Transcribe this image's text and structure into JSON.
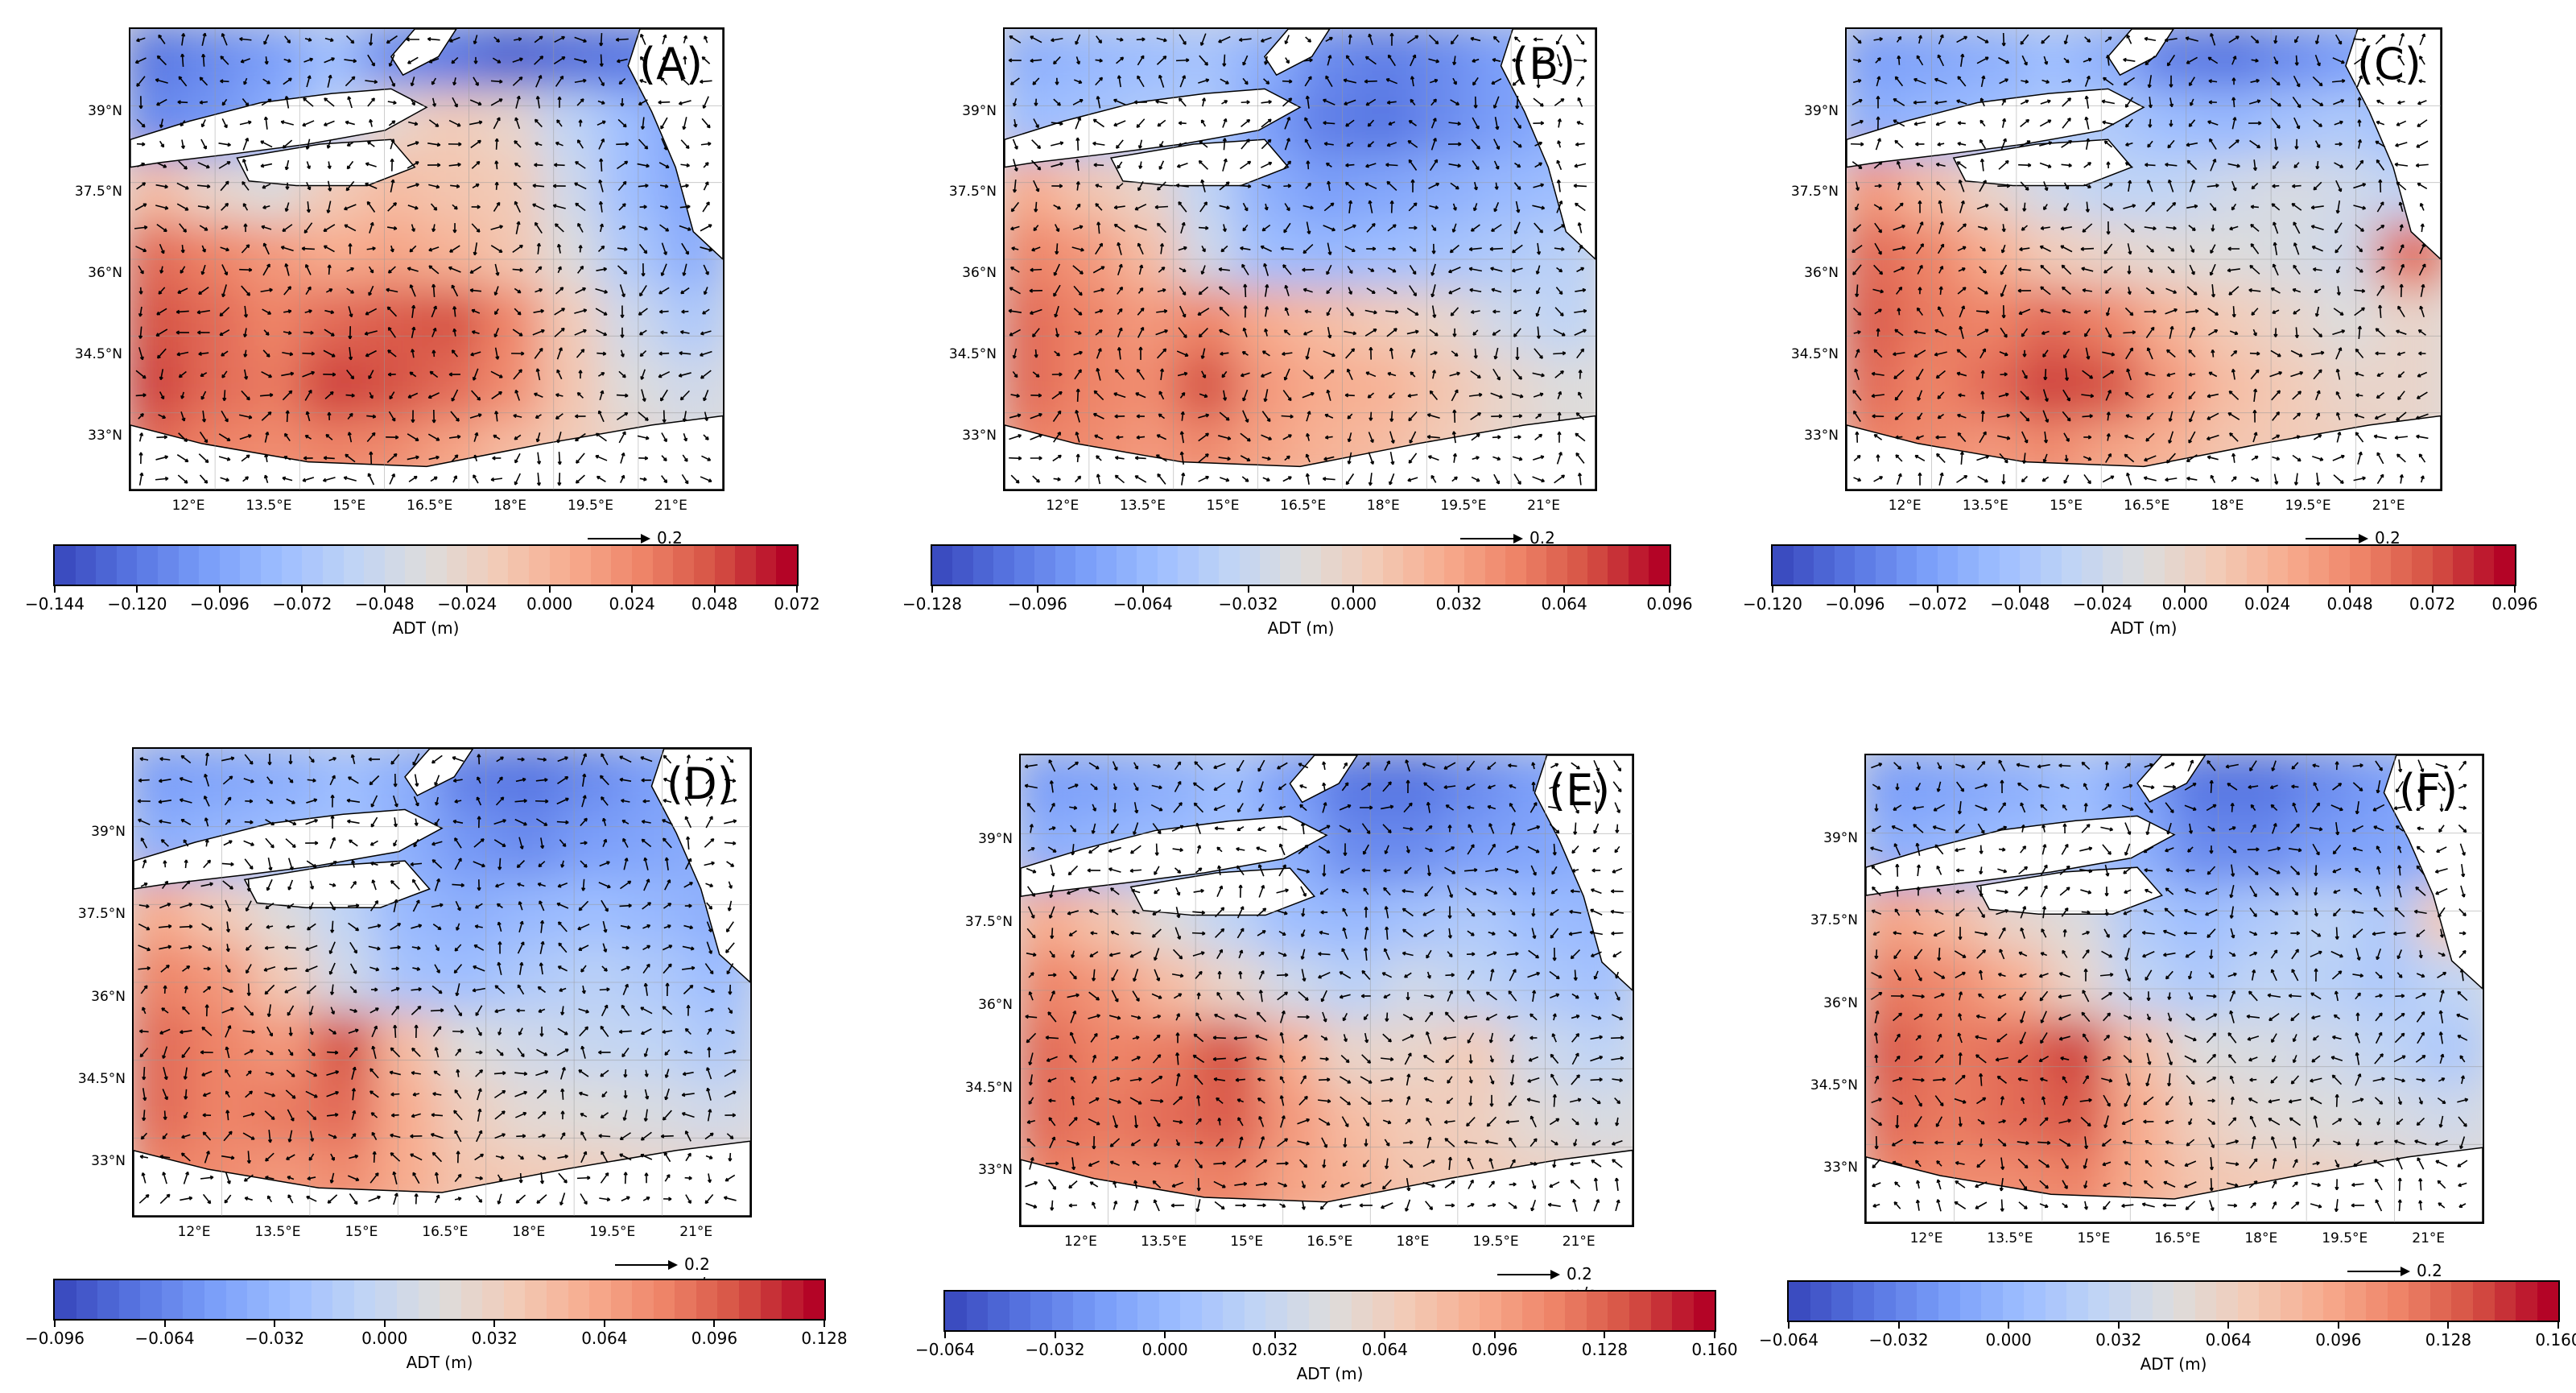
{
  "colors": {
    "scale": [
      "#3b4cc0",
      "#5977e3",
      "#7b9ff9",
      "#9ebeff",
      "#c0d4f5",
      "#dddcdc",
      "#f2cbb7",
      "#f7ac8e",
      "#ee8468",
      "#d65244",
      "#b40426"
    ],
    "land": "#ffffff"
  },
  "reference_vector": "0.2 m/s",
  "lat_labels": [
    "39°N",
    "37.5°N",
    "36°N",
    "34.5°N",
    "33°N"
  ],
  "lon_labels": [
    "12°E",
    "13.5°E",
    "15°E",
    "16.5°E",
    "18°E",
    "19.5°E",
    "21°E"
  ],
  "colorbar_label": "ADT (m)",
  "panels": [
    {
      "label": "(A)",
      "ticks": [
        "−0.144",
        "−0.120",
        "−0.096",
        "−0.072",
        "−0.048",
        "−0.024",
        "0.000",
        "0.024",
        "0.048",
        "0.072"
      ],
      "pattern": [
        [
          0.1,
          0.15,
          0.2,
          0.3,
          0.15,
          0.1,
          0.05,
          0.08,
          0.1,
          0.15
        ],
        [
          0.15,
          0.18,
          0.25,
          0.4,
          0.55,
          0.6,
          0.55,
          0.4,
          0.3,
          0.2
        ],
        [
          0.65,
          0.55,
          0.5,
          0.6,
          0.65,
          0.62,
          0.6,
          0.45,
          0.3,
          0.22
        ],
        [
          0.85,
          0.8,
          0.75,
          0.7,
          0.72,
          0.68,
          0.62,
          0.5,
          0.35,
          0.25
        ],
        [
          0.9,
          0.85,
          0.8,
          0.85,
          0.88,
          0.9,
          0.8,
          0.6,
          0.45,
          0.35
        ],
        [
          0.92,
          0.85,
          0.82,
          0.92,
          0.9,
          0.85,
          0.78,
          0.62,
          0.5,
          0.45
        ],
        [
          0.85,
          0.8,
          0.78,
          0.8,
          0.78,
          0.72,
          0.65,
          0.6,
          0.55,
          0.5
        ]
      ]
    },
    {
      "label": "(B)",
      "ticks": [
        "−0.128",
        "−0.096",
        "−0.064",
        "−0.032",
        "0.000",
        "0.032",
        "0.064",
        "0.096"
      ],
      "pattern": [
        [
          0.25,
          0.28,
          0.3,
          0.32,
          0.25,
          0.15,
          0.12,
          0.15,
          0.2,
          0.25
        ],
        [
          0.3,
          0.32,
          0.35,
          0.35,
          0.2,
          0.12,
          0.1,
          0.15,
          0.2,
          0.25
        ],
        [
          0.7,
          0.62,
          0.55,
          0.4,
          0.25,
          0.2,
          0.22,
          0.25,
          0.28,
          0.3
        ],
        [
          0.8,
          0.75,
          0.65,
          0.45,
          0.3,
          0.28,
          0.3,
          0.32,
          0.35,
          0.38
        ],
        [
          0.85,
          0.8,
          0.75,
          0.8,
          0.7,
          0.65,
          0.6,
          0.55,
          0.45,
          0.4
        ],
        [
          0.85,
          0.8,
          0.78,
          0.9,
          0.75,
          0.7,
          0.68,
          0.62,
          0.55,
          0.5
        ],
        [
          0.8,
          0.78,
          0.75,
          0.78,
          0.72,
          0.68,
          0.65,
          0.6,
          0.55,
          0.52
        ]
      ]
    },
    {
      "label": "(C)",
      "ticks": [
        "−0.120",
        "−0.096",
        "−0.072",
        "−0.048",
        "−0.024",
        "0.000",
        "0.024",
        "0.048",
        "0.072",
        "0.096"
      ],
      "pattern": [
        [
          0.2,
          0.22,
          0.25,
          0.3,
          0.25,
          0.12,
          0.1,
          0.15,
          0.2,
          0.25
        ],
        [
          0.25,
          0.28,
          0.3,
          0.35,
          0.35,
          0.3,
          0.28,
          0.32,
          0.35,
          0.3
        ],
        [
          0.75,
          0.65,
          0.55,
          0.45,
          0.4,
          0.4,
          0.45,
          0.48,
          0.45,
          0.4
        ],
        [
          0.85,
          0.8,
          0.7,
          0.6,
          0.55,
          0.52,
          0.5,
          0.48,
          0.45,
          0.85
        ],
        [
          0.88,
          0.82,
          0.8,
          0.85,
          0.8,
          0.68,
          0.6,
          0.55,
          0.5,
          0.55
        ],
        [
          0.85,
          0.8,
          0.85,
          0.92,
          0.9,
          0.75,
          0.65,
          0.6,
          0.55,
          0.55
        ],
        [
          0.8,
          0.78,
          0.75,
          0.78,
          0.72,
          0.68,
          0.62,
          0.6,
          0.58,
          0.55
        ]
      ]
    },
    {
      "label": "(D)",
      "ticks": [
        "−0.096",
        "−0.064",
        "−0.032",
        "0.000",
        "0.032",
        "0.064",
        "0.096",
        "0.128"
      ],
      "pattern": [
        [
          0.2,
          0.22,
          0.25,
          0.3,
          0.25,
          0.12,
          0.1,
          0.15,
          0.2,
          0.25
        ],
        [
          0.25,
          0.28,
          0.3,
          0.32,
          0.25,
          0.18,
          0.15,
          0.2,
          0.22,
          0.25
        ],
        [
          0.7,
          0.6,
          0.5,
          0.4,
          0.28,
          0.25,
          0.28,
          0.3,
          0.28,
          0.25
        ],
        [
          0.8,
          0.75,
          0.6,
          0.45,
          0.32,
          0.3,
          0.35,
          0.38,
          0.35,
          0.3
        ],
        [
          0.85,
          0.8,
          0.75,
          0.9,
          0.65,
          0.5,
          0.45,
          0.42,
          0.4,
          0.35
        ],
        [
          0.85,
          0.8,
          0.82,
          0.85,
          0.7,
          0.58,
          0.52,
          0.5,
          0.48,
          0.45
        ],
        [
          0.8,
          0.78,
          0.75,
          0.78,
          0.7,
          0.62,
          0.6,
          0.58,
          0.55,
          0.55
        ]
      ]
    },
    {
      "label": "(E)",
      "ticks": [
        "−0.064",
        "−0.032",
        "0.000",
        "0.032",
        "0.064",
        "0.096",
        "0.128",
        "0.160"
      ],
      "pattern": [
        [
          0.2,
          0.22,
          0.25,
          0.3,
          0.2,
          0.1,
          0.1,
          0.15,
          0.2,
          0.25
        ],
        [
          0.25,
          0.28,
          0.3,
          0.32,
          0.25,
          0.15,
          0.15,
          0.2,
          0.22,
          0.25
        ],
        [
          0.7,
          0.62,
          0.5,
          0.4,
          0.3,
          0.28,
          0.32,
          0.35,
          0.3,
          0.28
        ],
        [
          0.8,
          0.75,
          0.65,
          0.55,
          0.45,
          0.38,
          0.45,
          0.4,
          0.35,
          0.32
        ],
        [
          0.85,
          0.8,
          0.82,
          0.9,
          0.7,
          0.55,
          0.55,
          0.6,
          0.45,
          0.4
        ],
        [
          0.85,
          0.82,
          0.85,
          0.88,
          0.75,
          0.65,
          0.6,
          0.58,
          0.52,
          0.48
        ],
        [
          0.8,
          0.78,
          0.78,
          0.8,
          0.72,
          0.68,
          0.62,
          0.6,
          0.58,
          0.55
        ]
      ]
    },
    {
      "label": "(F)",
      "ticks": [
        "−0.064",
        "−0.032",
        "0.000",
        "0.032",
        "0.064",
        "0.096",
        "0.128",
        "0.160"
      ],
      "pattern": [
        [
          0.2,
          0.22,
          0.25,
          0.3,
          0.22,
          0.1,
          0.1,
          0.15,
          0.2,
          0.25
        ],
        [
          0.25,
          0.28,
          0.3,
          0.32,
          0.25,
          0.15,
          0.15,
          0.2,
          0.22,
          0.25
        ],
        [
          0.72,
          0.65,
          0.55,
          0.5,
          0.35,
          0.3,
          0.35,
          0.4,
          0.35,
          0.6
        ],
        [
          0.82,
          0.78,
          0.7,
          0.55,
          0.4,
          0.35,
          0.4,
          0.38,
          0.35,
          0.4
        ],
        [
          0.88,
          0.82,
          0.85,
          0.92,
          0.65,
          0.5,
          0.48,
          0.45,
          0.4,
          0.35
        ],
        [
          0.85,
          0.82,
          0.85,
          0.88,
          0.7,
          0.58,
          0.52,
          0.5,
          0.48,
          0.45
        ],
        [
          0.8,
          0.78,
          0.78,
          0.8,
          0.7,
          0.62,
          0.6,
          0.58,
          0.55,
          0.52
        ]
      ]
    }
  ]
}
